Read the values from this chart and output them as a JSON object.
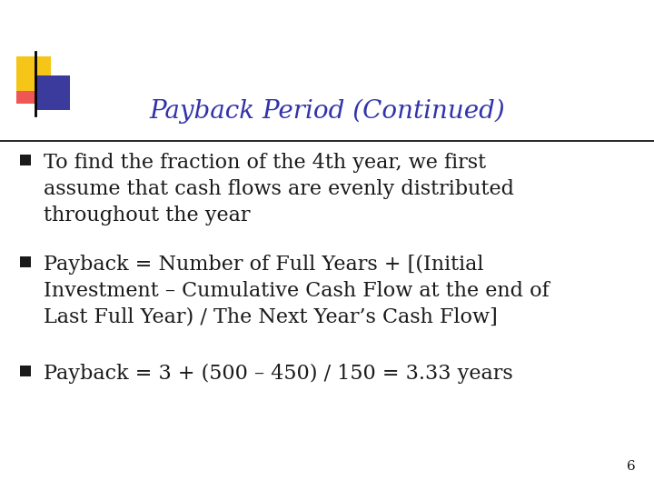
{
  "title": "Payback Period (Continued)",
  "title_color": "#3333aa",
  "title_fontsize": 20,
  "background_color": "#ffffff",
  "bullet_color": "#1a1a1a",
  "bullet_marker_color": "#1a1a1a",
  "bullets": [
    "To find the fraction of the 4th year, we first\nassume that cash flows are evenly distributed\nthroughout the year",
    "Payback = Number of Full Years + [(Initial\nInvestment – Cumulative Cash Flow at the end of\nLast Full Year) / The Next Year’s Cash Flow]",
    "Payback = 3 + (500 – 450) / 150 = 3.33 years"
  ],
  "bullet_fontsize": 16,
  "slide_number": "6",
  "logo_yellow": "#f5c518",
  "logo_blue": "#3b3b9e",
  "logo_red": "#ee4444",
  "line_color": "#000000"
}
